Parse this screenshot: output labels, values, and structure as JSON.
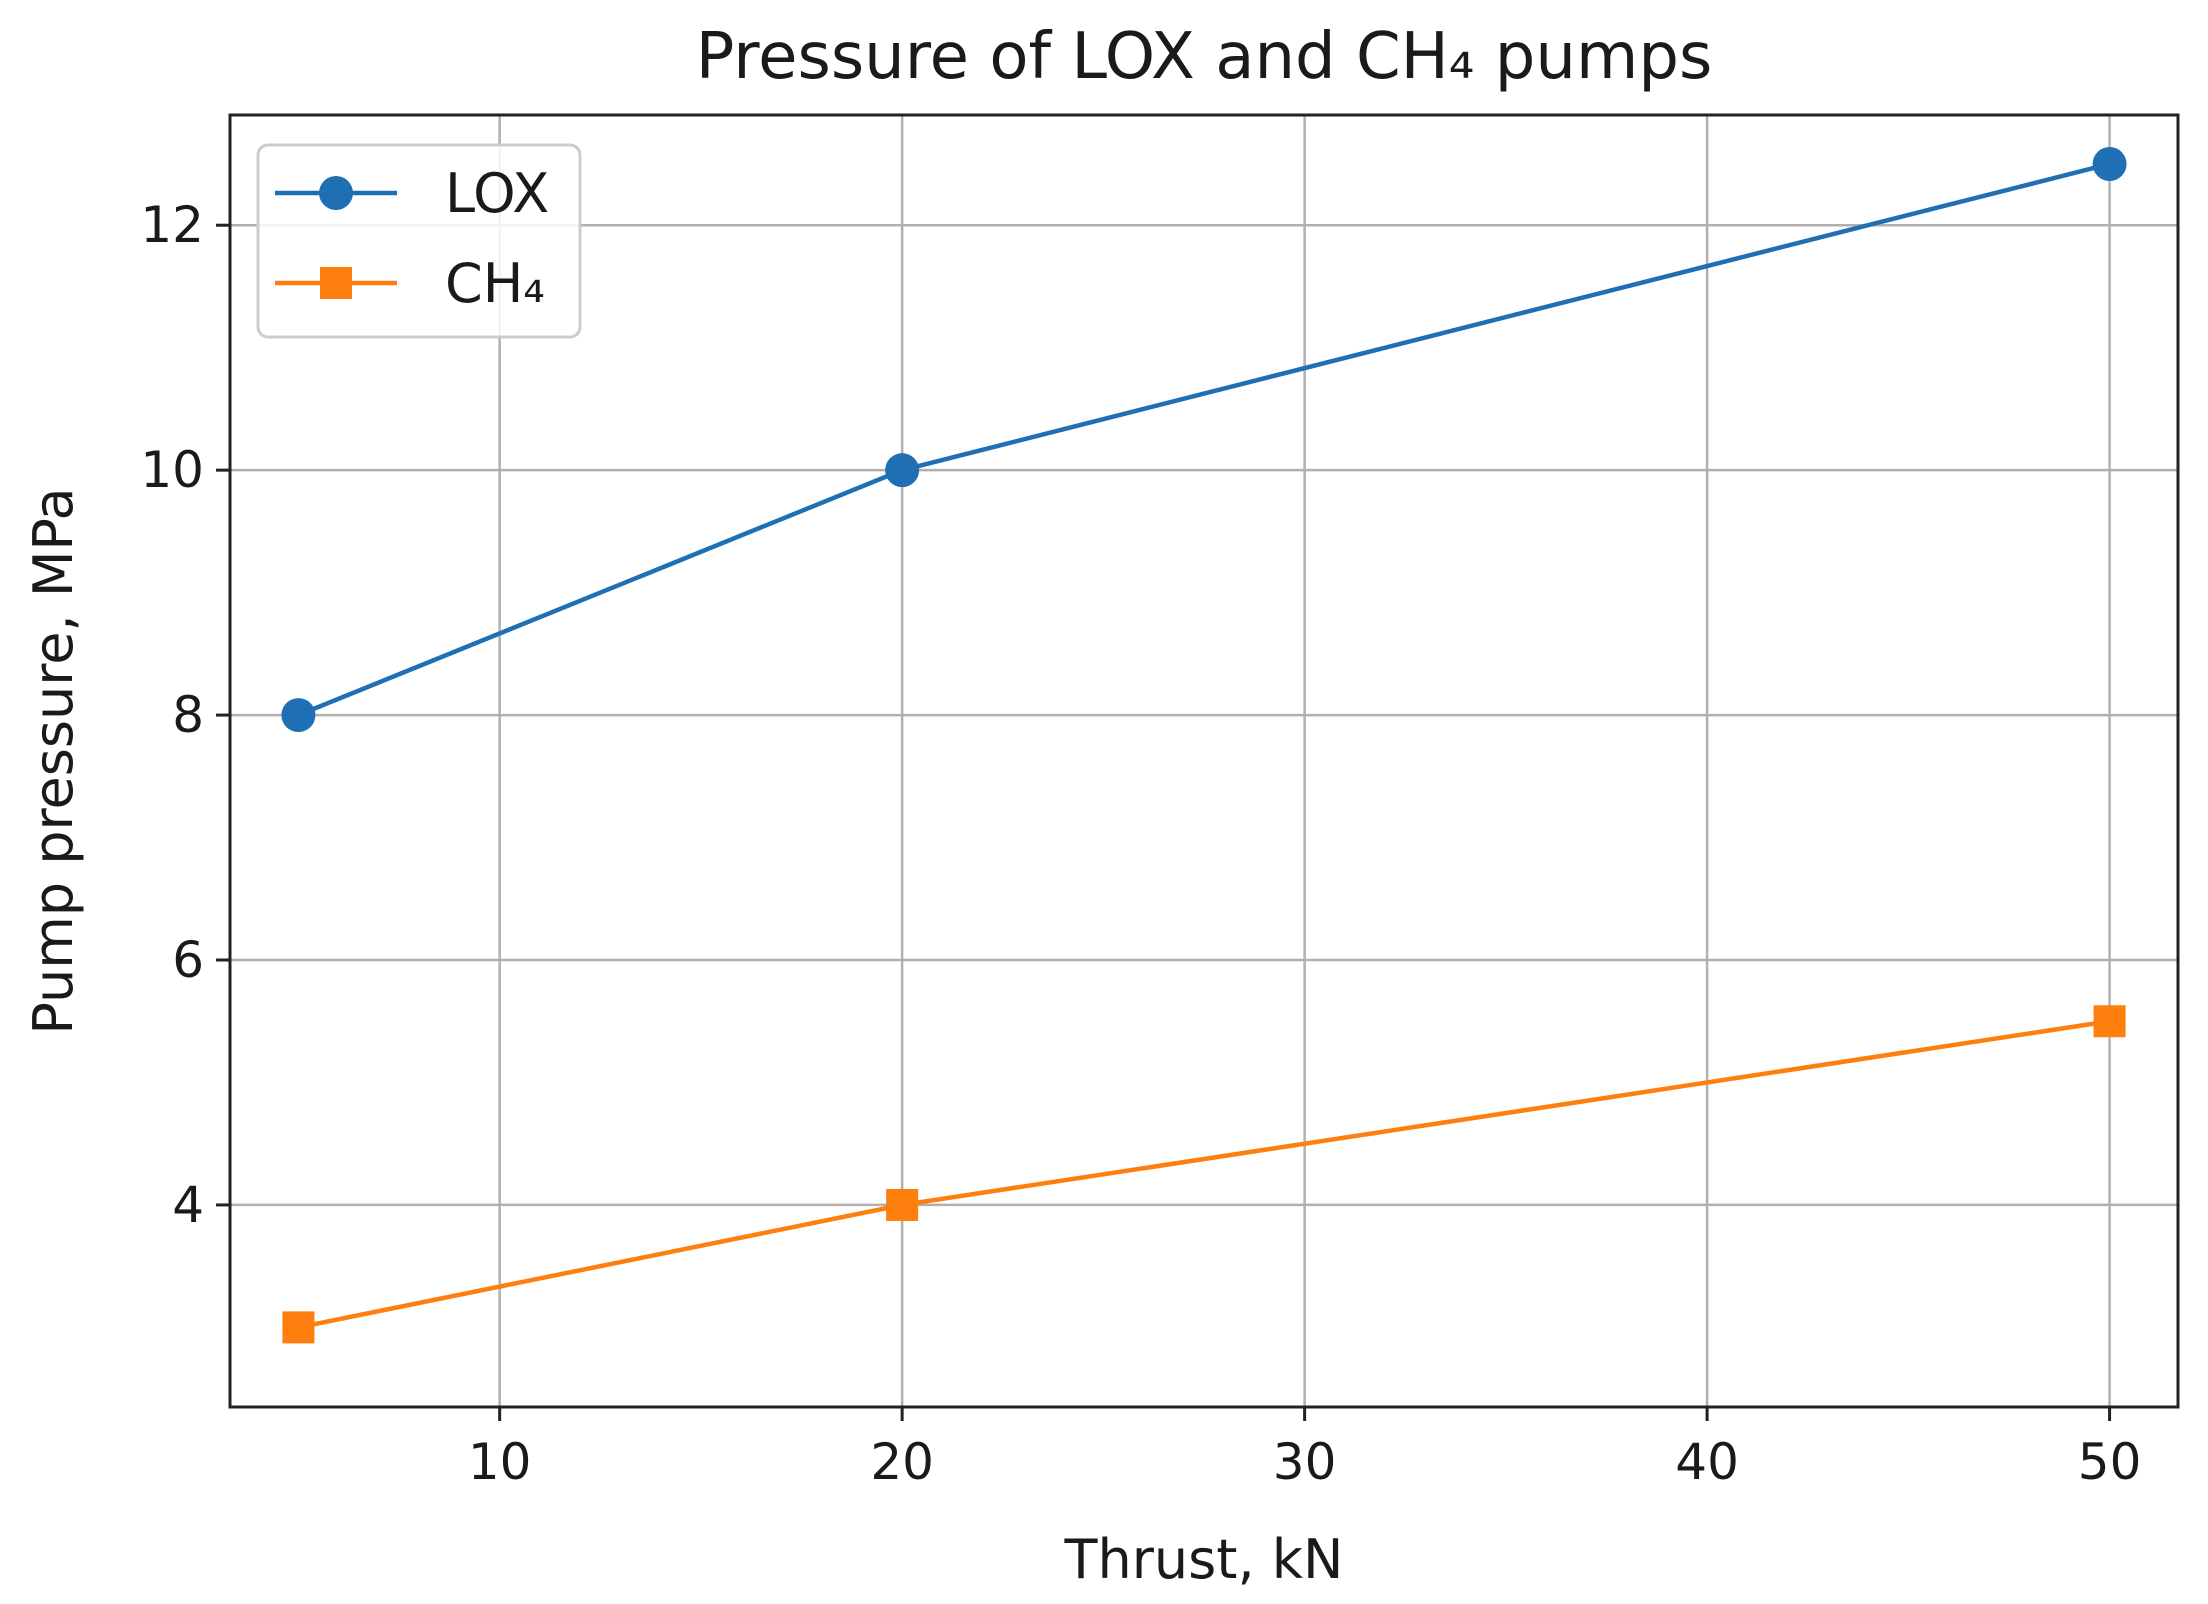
{
  "chart_data": {
    "type": "line",
    "title": "Pressure of LOX and CH₄ pumps",
    "xlabel": "Thrust, kN",
    "ylabel": "Pump pressure, MPa",
    "x": [
      5,
      20,
      50
    ],
    "xlim": [
      3.3,
      51.7
    ],
    "ylim": [
      2.35,
      12.9
    ],
    "xticks": [
      10,
      20,
      30,
      40,
      50
    ],
    "yticks": [
      4,
      6,
      8,
      10,
      12
    ],
    "xtick_labels": [
      "10",
      "20",
      "30",
      "40",
      "50"
    ],
    "ytick_labels": [
      "4",
      "6",
      "8",
      "10",
      "12"
    ],
    "grid": true,
    "legend_position": "top-left",
    "series": [
      {
        "name": "LOX",
        "values": [
          8.0,
          10.0,
          12.5
        ],
        "color": "#1f6fb4",
        "marker": "circle"
      },
      {
        "name": "CH₄",
        "values": [
          3.0,
          4.0,
          5.5
        ],
        "color": "#ff7f0e",
        "marker": "square"
      }
    ]
  }
}
